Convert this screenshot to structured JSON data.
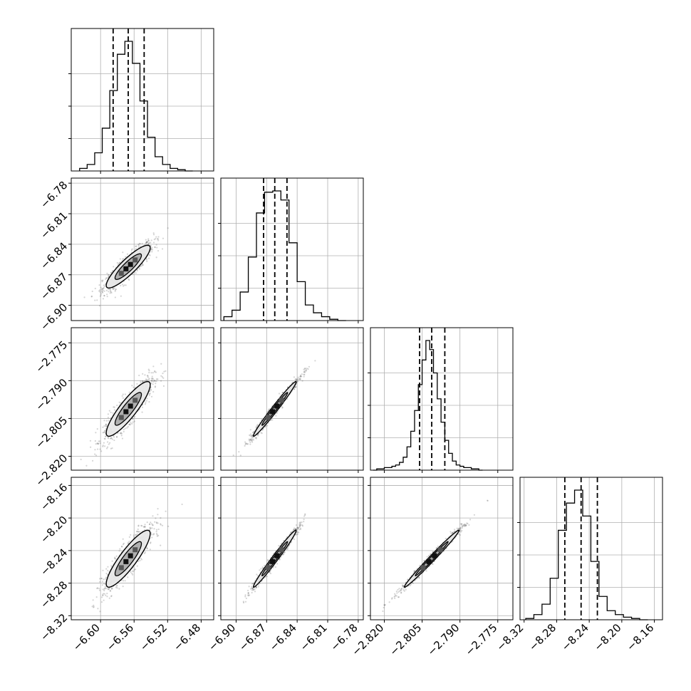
{
  "chart_data": {
    "type": "corner",
    "colors": {
      "line": "#000000",
      "grid": "#b0b0b0",
      "scatter": "#404040"
    },
    "grid": true,
    "parameters": [
      {
        "range": [
          -6.635,
          -6.465
        ],
        "ticks": [
          "−6.60",
          "−6.56",
          "−6.52",
          "−6.48"
        ],
        "tick_values": [
          -6.6,
          -6.56,
          -6.52,
          -6.48
        ],
        "quantiles": [
          -6.585,
          -6.567,
          -6.548
        ]
      },
      {
        "range": [
          -6.915,
          -6.775
        ],
        "ticks": [
          "−6.90",
          "−6.87",
          "−6.84",
          "−6.81",
          "−6.78"
        ],
        "tick_values": [
          -6.9,
          -6.87,
          -6.84,
          -6.81,
          -6.78
        ],
        "quantiles": [
          -6.873,
          -6.862,
          -6.85
        ]
      },
      {
        "range": [
          -2.8255,
          -2.769
        ],
        "ticks": [
          "−2.820",
          "−2.805",
          "−2.790",
          "−2.775"
        ],
        "tick_values": [
          -2.82,
          -2.805,
          -2.79,
          -2.775
        ],
        "quantiles": [
          -2.806,
          -2.8012,
          -2.796
        ]
      },
      {
        "range": [
          -8.325,
          -8.15
        ],
        "ticks": [
          "−8.32",
          "−8.28",
          "−8.24",
          "−8.20",
          "−8.16"
        ],
        "tick_values": [
          -8.32,
          -8.28,
          -8.24,
          -8.2,
          -8.16
        ],
        "quantiles": [
          -8.27,
          -8.25,
          -8.23
        ]
      }
    ],
    "histograms": [
      {
        "param": 0,
        "edges": [
          -6.625,
          -6.616,
          -6.607,
          -6.598,
          -6.589,
          -6.58,
          -6.571,
          -6.562,
          -6.553,
          -6.544,
          -6.535,
          -6.526,
          -6.517,
          -6.508,
          -6.499,
          -6.49
        ],
        "counts": [
          0.02,
          0.05,
          0.14,
          0.33,
          0.62,
          0.9,
          1.0,
          0.83,
          0.54,
          0.26,
          0.11,
          0.05,
          0.02,
          0.01,
          0.0
        ]
      },
      {
        "param": 1,
        "edges": [
          -6.912,
          -6.904,
          -6.896,
          -6.888,
          -6.88,
          -6.872,
          -6.864,
          -6.856,
          -6.848,
          -6.84,
          -6.832,
          -6.824,
          -6.816,
          -6.808,
          -6.8,
          -6.792
        ],
        "counts": [
          0.03,
          0.08,
          0.22,
          0.49,
          0.83,
          0.99,
          1.0,
          0.93,
          0.6,
          0.3,
          0.12,
          0.06,
          0.03,
          0.01,
          0.0
        ]
      },
      {
        "param": 2,
        "edges": [
          -2.8245,
          -2.823,
          -2.8215,
          -2.82,
          -2.8185,
          -2.817,
          -2.8155,
          -2.814,
          -2.8125,
          -2.811,
          -2.8095,
          -2.808,
          -2.8065,
          -2.805,
          -2.8035,
          -2.802,
          -2.8005,
          -2.799,
          -2.7975,
          -2.796,
          -2.7945,
          -2.793,
          -2.7915,
          -2.79,
          -2.7885,
          -2.787,
          -2.7855,
          -2.784,
          -2.7825,
          -2.781
        ],
        "counts": [
          0.0,
          0.01,
          0.01,
          0.02,
          0.02,
          0.03,
          0.04,
          0.06,
          0.1,
          0.18,
          0.3,
          0.46,
          0.66,
          0.85,
          1.0,
          0.93,
          0.75,
          0.55,
          0.37,
          0.23,
          0.13,
          0.07,
          0.04,
          0.03,
          0.02,
          0.02,
          0.01,
          0.01,
          0.0
        ]
      },
      {
        "param": 3,
        "edges": [
          -8.318,
          -8.308,
          -8.298,
          -8.288,
          -8.278,
          -8.268,
          -8.258,
          -8.248,
          -8.238,
          -8.228,
          -8.218,
          -8.208,
          -8.198,
          -8.188,
          -8.178,
          -8.168
        ],
        "counts": [
          0.01,
          0.04,
          0.12,
          0.32,
          0.69,
          0.9,
          1.0,
          0.8,
          0.45,
          0.18,
          0.07,
          0.04,
          0.02,
          0.01,
          0.0
        ]
      }
    ],
    "scatter_panels": [
      {
        "x": 0,
        "y": 1,
        "center": [
          -6.567,
          -6.862
        ],
        "sx": 0.015,
        "sy": 0.012,
        "rho": 0.88,
        "n": 900
      },
      {
        "x": 0,
        "y": 2,
        "center": [
          -6.567,
          -2.8012
        ],
        "sx": 0.015,
        "sy": 0.0062,
        "rho": 0.88,
        "n": 900
      },
      {
        "x": 1,
        "y": 2,
        "center": [
          -6.862,
          -2.8012
        ],
        "sx": 0.012,
        "sy": 0.0062,
        "rho": 0.985,
        "n": 900
      },
      {
        "x": 0,
        "y": 3,
        "center": [
          -6.567,
          -8.25
        ],
        "sx": 0.015,
        "sy": 0.02,
        "rho": 0.88,
        "n": 900
      },
      {
        "x": 1,
        "y": 3,
        "center": [
          -6.862,
          -8.25
        ],
        "sx": 0.012,
        "sy": 0.02,
        "rho": 0.985,
        "n": 900
      },
      {
        "x": 2,
        "y": 3,
        "center": [
          -2.8012,
          -8.25
        ],
        "sx": 0.0062,
        "sy": 0.02,
        "rho": 0.99,
        "n": 900
      }
    ]
  }
}
